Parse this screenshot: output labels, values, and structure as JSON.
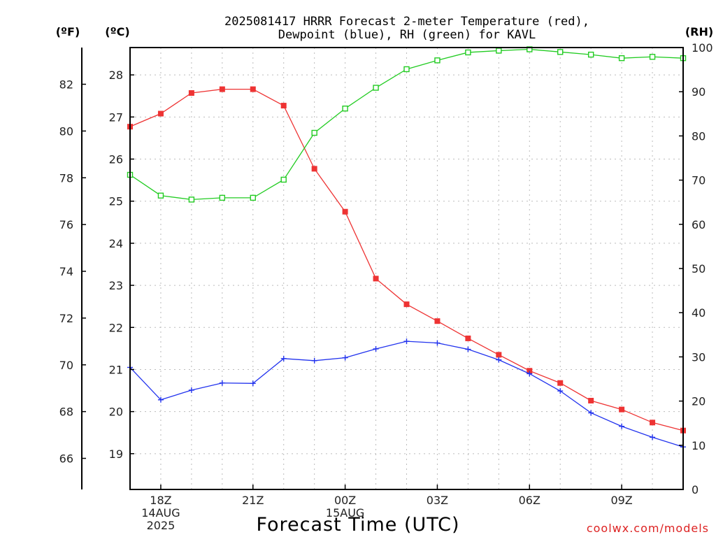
{
  "chart_data": {
    "type": "line",
    "title_line1": "2025081417 HRRR Forecast 2-meter Temperature (red),",
    "title_line2": "Dewpoint (blue), RH (green) for KAVL",
    "xlabel": "Forecast Time (UTC)",
    "credit": "coolwx.com/models",
    "unit_f": "(ºF)",
    "unit_c": "(ºC)",
    "unit_rh": "(RH)",
    "x_hours": [
      17,
      18,
      19,
      20,
      21,
      22,
      23,
      24,
      25,
      26,
      27,
      28,
      29,
      30,
      31,
      32,
      33,
      34,
      35
    ],
    "x_ticks": [
      {
        "hour": 18,
        "lines": [
          "18Z",
          "14AUG",
          "2025"
        ]
      },
      {
        "hour": 21,
        "lines": [
          "21Z"
        ]
      },
      {
        "hour": 24,
        "lines": [
          "00Z",
          "15AUG"
        ]
      },
      {
        "hour": 27,
        "lines": [
          "03Z"
        ]
      },
      {
        "hour": 30,
        "lines": [
          "06Z"
        ]
      },
      {
        "hour": 33,
        "lines": [
          "09Z"
        ]
      }
    ],
    "c_axis": {
      "ylim": [
        18.15,
        28.65
      ],
      "ticks": [
        19,
        20,
        21,
        22,
        23,
        24,
        25,
        26,
        27,
        28
      ]
    },
    "f_axis": {
      "ylim": [
        64.67,
        83.57
      ],
      "ticks": [
        66,
        68,
        70,
        72,
        74,
        76,
        78,
        80,
        82
      ]
    },
    "rh_axis": {
      "ylim": [
        0,
        100
      ],
      "ticks": [
        0,
        10,
        20,
        30,
        40,
        50,
        60,
        70,
        80,
        90,
        100
      ]
    },
    "grid": true,
    "series": [
      {
        "name": "Temperature",
        "axis": "c",
        "color": "#ee3333",
        "marker": "filled-square",
        "values": [
          26.77,
          27.08,
          27.57,
          27.66,
          27.66,
          27.27,
          25.77,
          24.75,
          23.16,
          22.55,
          22.15,
          21.74,
          21.35,
          20.97,
          20.68,
          20.26,
          20.05,
          19.74,
          19.55
        ]
      },
      {
        "name": "Dewpoint",
        "axis": "c",
        "color": "#2233ee",
        "marker": "plus",
        "values": [
          21.05,
          20.28,
          20.51,
          20.68,
          20.67,
          21.26,
          21.21,
          21.28,
          21.49,
          21.67,
          21.63,
          21.48,
          21.23,
          20.9,
          20.49,
          19.97,
          19.65,
          19.39,
          19.16
        ]
      },
      {
        "name": "RH",
        "axis": "rh",
        "color": "#22cc22",
        "marker": "open-square",
        "values": [
          71.2,
          66.5,
          65.6,
          66.0,
          66.0,
          70.1,
          80.7,
          86.2,
          90.9,
          95.1,
          97.1,
          98.9,
          99.3,
          99.6,
          99.0,
          98.4,
          97.6,
          97.9,
          97.6
        ]
      }
    ]
  }
}
